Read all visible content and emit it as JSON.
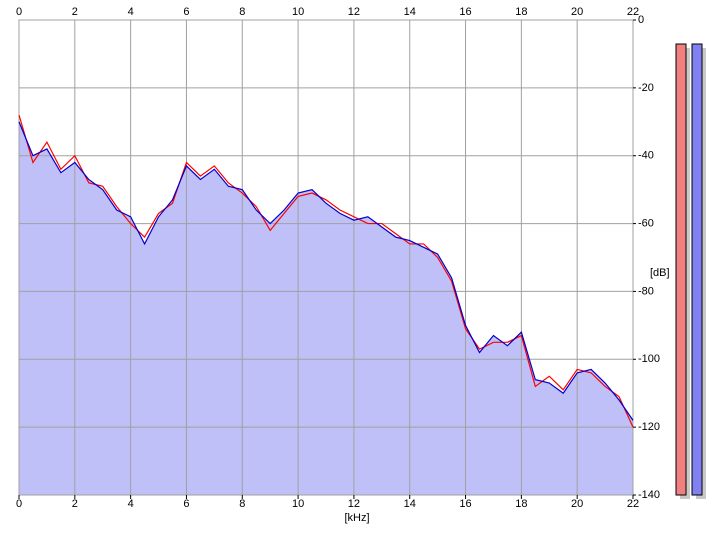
{
  "chart_data": {
    "type": "line",
    "x_label": "[kHz]",
    "y_label": "[dB]",
    "x": [
      0,
      0.5,
      1,
      1.5,
      2,
      2.5,
      3,
      3.5,
      4,
      4.5,
      5,
      5.5,
      6,
      6.5,
      7,
      7.5,
      8,
      8.5,
      9,
      9.5,
      10,
      10.5,
      11,
      11.5,
      12,
      12.5,
      13,
      13.5,
      14,
      14.5,
      15,
      15.5,
      16,
      16.5,
      17,
      17.5,
      18,
      18.5,
      19,
      19.5,
      20,
      20.5,
      21,
      21.5,
      22
    ],
    "series": [
      {
        "color": "#ff0000",
        "values": [
          -28,
          -42,
          -36,
          -44,
          -40,
          -48,
          -49,
          -55,
          -60,
          -64,
          -57,
          -54,
          -42,
          -46,
          -43,
          -48,
          -51,
          -55,
          -62,
          -57,
          -52,
          -51,
          -53,
          -56,
          -58,
          -60,
          -60,
          -63,
          -66,
          -66,
          -70,
          -77,
          -91,
          -97,
          -95,
          -95,
          -93,
          -108,
          -105,
          -109,
          -103,
          -104,
          -108,
          -111,
          -120
        ]
      },
      {
        "color": "#0000cc",
        "fill": "#c0c0f8",
        "values": [
          -30,
          -40,
          -38,
          -45,
          -42,
          -47,
          -50,
          -56,
          -58,
          -66,
          -58,
          -53,
          -43,
          -47,
          -44,
          -49,
          -50,
          -56,
          -60,
          -56,
          -51,
          -50,
          -54,
          -57,
          -59,
          -58,
          -61,
          -64,
          -65,
          -67,
          -69,
          -76,
          -90,
          -98,
          -93,
          -96,
          -92,
          -106,
          -107,
          -110,
          -104,
          -103,
          -107,
          -112,
          -118
        ]
      }
    ],
    "xlim": [
      0,
      22
    ],
    "xticks": [
      0,
      2,
      4,
      6,
      8,
      10,
      12,
      14,
      16,
      18,
      20,
      22
    ],
    "ylim": [
      -140,
      0
    ],
    "yticks": [
      0,
      -20,
      -40,
      -60,
      -80,
      -100,
      -120,
      -140
    ],
    "grid": true
  }
}
